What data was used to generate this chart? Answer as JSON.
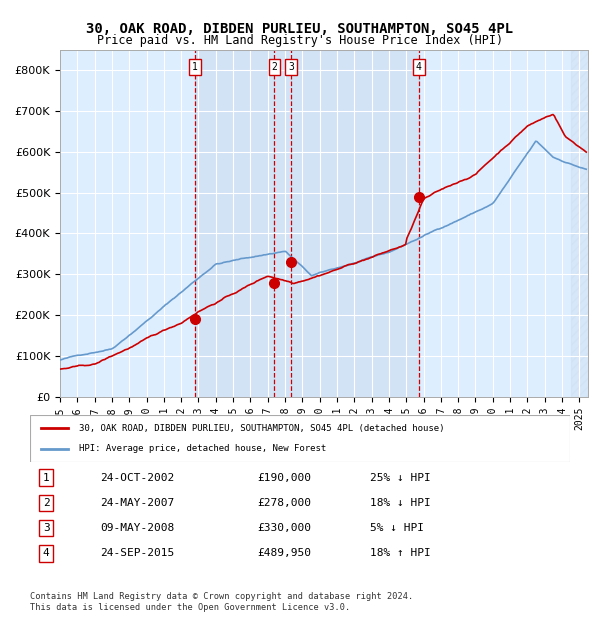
{
  "title": "30, OAK ROAD, DIBDEN PURLIEU, SOUTHAMPTON, SO45 4PL",
  "subtitle": "Price paid vs. HM Land Registry's House Price Index (HPI)",
  "ylabel": "",
  "ylim": [
    0,
    850000
  ],
  "yticks": [
    0,
    100000,
    200000,
    300000,
    400000,
    500000,
    600000,
    700000,
    800000
  ],
  "ytick_labels": [
    "£0",
    "£100K",
    "£200K",
    "£300K",
    "£400K",
    "£500K",
    "£600K",
    "£700K",
    "£800K"
  ],
  "xlim_start": 1995.0,
  "xlim_end": 2025.5,
  "sale_dates": [
    2002.81,
    2007.39,
    2008.36,
    2015.73
  ],
  "sale_prices": [
    190000,
    278000,
    330000,
    489950
  ],
  "sale_labels": [
    "1",
    "2",
    "3",
    "4"
  ],
  "hpi_color": "#6699cc",
  "price_color": "#cc0000",
  "sale_marker_color": "#cc0000",
  "background_color": "#ffffff",
  "plot_bg_color": "#ddeeff",
  "grid_color": "#ffffff",
  "dashed_line_color": "#cc0000",
  "legend_house_label": "30, OAK ROAD, DIBDEN PURLIEU, SOUTHAMPTON, SO45 4PL (detached house)",
  "legend_hpi_label": "HPI: Average price, detached house, New Forest",
  "table_data": [
    [
      "1",
      "24-OCT-2002",
      "£190,000",
      "25% ↓ HPI"
    ],
    [
      "2",
      "24-MAY-2007",
      "£278,000",
      "18% ↓ HPI"
    ],
    [
      "3",
      "09-MAY-2008",
      "£330,000",
      "5% ↓ HPI"
    ],
    [
      "4",
      "24-SEP-2015",
      "£489,950",
      "18% ↑ HPI"
    ]
  ],
  "footnote": "Contains HM Land Registry data © Crown copyright and database right 2024.\nThis data is licensed under the Open Government Licence v3.0.",
  "hatch_region_start": 2024.5,
  "between_sales_shade": true
}
